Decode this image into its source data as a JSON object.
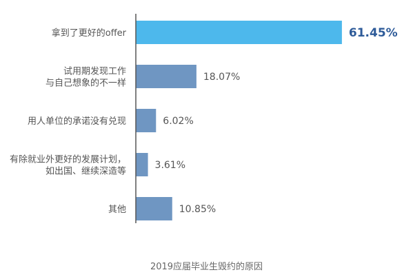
{
  "chart_data": {
    "type": "bar",
    "orientation": "horizontal",
    "categories": [
      [
        "拿到了更好的offer"
      ],
      [
        "试用期发现工作",
        "与自己想象的不一样"
      ],
      [
        "用人单位的承诺没有兑现"
      ],
      [
        "有除就业外更好的发展计划，",
        "如出国、继续深造等"
      ],
      [
        "其他"
      ]
    ],
    "values": [
      61.45,
      18.07,
      6.02,
      3.61,
      10.85
    ],
    "value_labels": [
      "61.45%",
      "18.07%",
      "6.02%",
      "3.61%",
      "10.85%"
    ],
    "highlight_index": 0,
    "xlim": [
      0,
      62.5
    ],
    "title": "2019应届毕业生毁约的原因"
  },
  "colors": {
    "bar_default": "#6f96c2",
    "bar_highlight": "#4db8ec",
    "highlight_text": "#2e5b99",
    "axis": "#555555"
  }
}
